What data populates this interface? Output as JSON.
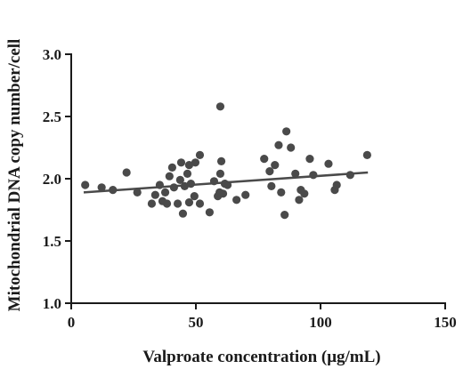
{
  "chart_data": {
    "type": "scatter",
    "title": "",
    "xlabel": "Valproate concentration (μg/mL)",
    "ylabel": "Mitochondrial DNA copy number/cell",
    "xlim": [
      0,
      150
    ],
    "ylim": [
      1.0,
      3.0
    ],
    "x_ticks": [
      "0",
      "50",
      "100",
      "150"
    ],
    "y_ticks": [
      "1.0",
      "1.5",
      "2.0",
      "2.5",
      "3.0"
    ],
    "grid": false,
    "colors": {
      "points": "#4a4a4a",
      "fit_line": "#4a4a4a",
      "axes": "#1a1a1a"
    },
    "points": [
      {
        "x": 5.6,
        "y": 1.95
      },
      {
        "x": 12.2,
        "y": 1.93
      },
      {
        "x": 16.7,
        "y": 1.91
      },
      {
        "x": 22.2,
        "y": 2.05
      },
      {
        "x": 26.5,
        "y": 1.89
      },
      {
        "x": 32.3,
        "y": 1.8
      },
      {
        "x": 33.7,
        "y": 1.87
      },
      {
        "x": 35.5,
        "y": 1.95
      },
      {
        "x": 36.6,
        "y": 1.82
      },
      {
        "x": 37.7,
        "y": 1.89
      },
      {
        "x": 38.4,
        "y": 1.8
      },
      {
        "x": 39.4,
        "y": 2.02
      },
      {
        "x": 40.5,
        "y": 2.09
      },
      {
        "x": 41.2,
        "y": 1.93
      },
      {
        "x": 42.7,
        "y": 1.8
      },
      {
        "x": 43.7,
        "y": 1.99
      },
      {
        "x": 44.1,
        "y": 2.13
      },
      {
        "x": 44.8,
        "y": 1.72
      },
      {
        "x": 45.5,
        "y": 1.94
      },
      {
        "x": 46.6,
        "y": 2.04
      },
      {
        "x": 47.3,
        "y": 2.11
      },
      {
        "x": 47.3,
        "y": 1.81
      },
      {
        "x": 48.0,
        "y": 1.96
      },
      {
        "x": 49.4,
        "y": 1.86
      },
      {
        "x": 49.8,
        "y": 2.13
      },
      {
        "x": 51.6,
        "y": 2.19
      },
      {
        "x": 51.6,
        "y": 1.8
      },
      {
        "x": 55.5,
        "y": 1.73
      },
      {
        "x": 57.3,
        "y": 1.98
      },
      {
        "x": 58.8,
        "y": 1.86
      },
      {
        "x": 59.5,
        "y": 1.89
      },
      {
        "x": 59.8,
        "y": 2.04
      },
      {
        "x": 59.8,
        "y": 2.58
      },
      {
        "x": 60.2,
        "y": 2.14
      },
      {
        "x": 60.9,
        "y": 1.88
      },
      {
        "x": 61.6,
        "y": 1.96
      },
      {
        "x": 62.7,
        "y": 1.95
      },
      {
        "x": 66.3,
        "y": 1.83
      },
      {
        "x": 69.9,
        "y": 1.87
      },
      {
        "x": 77.4,
        "y": 2.16
      },
      {
        "x": 79.6,
        "y": 2.06
      },
      {
        "x": 80.3,
        "y": 1.94
      },
      {
        "x": 81.7,
        "y": 2.11
      },
      {
        "x": 83.2,
        "y": 2.27
      },
      {
        "x": 84.2,
        "y": 1.89
      },
      {
        "x": 85.6,
        "y": 1.71
      },
      {
        "x": 86.3,
        "y": 2.38
      },
      {
        "x": 88.1,
        "y": 2.25
      },
      {
        "x": 89.9,
        "y": 2.04
      },
      {
        "x": 91.4,
        "y": 1.83
      },
      {
        "x": 92.1,
        "y": 1.91
      },
      {
        "x": 93.5,
        "y": 1.88
      },
      {
        "x": 95.7,
        "y": 2.16
      },
      {
        "x": 97.1,
        "y": 2.03
      },
      {
        "x": 103.2,
        "y": 2.12
      },
      {
        "x": 105.7,
        "y": 1.91
      },
      {
        "x": 106.5,
        "y": 1.95
      },
      {
        "x": 111.9,
        "y": 2.03
      },
      {
        "x": 118.7,
        "y": 2.19
      }
    ],
    "fit_line": {
      "x": [
        5,
        119
      ],
      "y": [
        1.89,
        2.05
      ]
    }
  }
}
